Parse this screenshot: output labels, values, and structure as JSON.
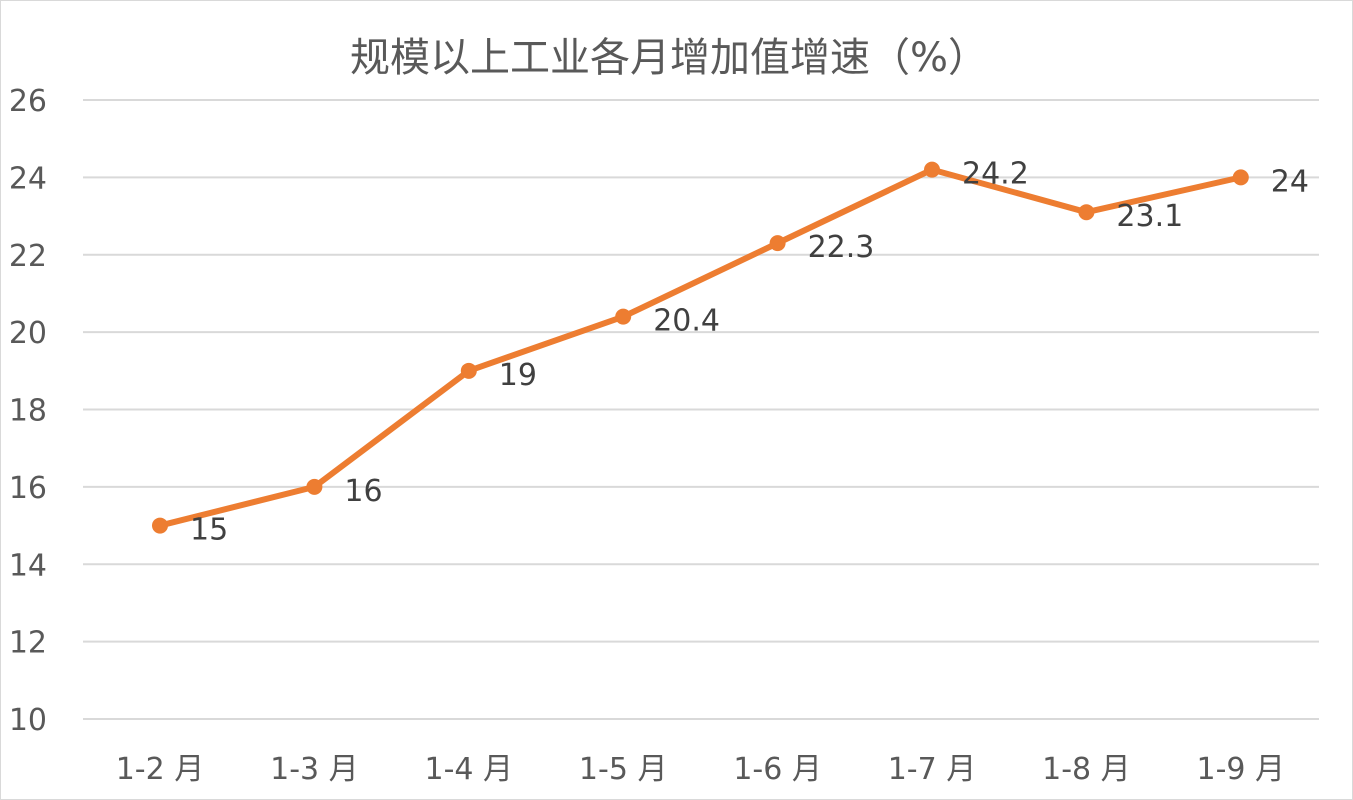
{
  "chart_data": {
    "type": "line",
    "title": "规模以上工业各月增加值增速（%）",
    "xlabel": "",
    "ylabel": "",
    "categories": [
      "1-2 月",
      "1-3 月",
      "1-4 月",
      "1-5 月",
      "1-6 月",
      "1-7 月",
      "1-8 月",
      "1-9 月"
    ],
    "series": [
      {
        "values": [
          15,
          16,
          19,
          20.4,
          22.3,
          24.2,
          23.1,
          24
        ],
        "labels": [
          "15",
          "16",
          "19",
          "20.4",
          "22.3",
          "24.2",
          "23.1",
          "24"
        ],
        "color": "#ed7d31"
      }
    ],
    "ylim": [
      10,
      26
    ],
    "yticks": [
      "10",
      "12",
      "14",
      "16",
      "18",
      "20",
      "22",
      "24",
      "26"
    ],
    "grid": true,
    "legend": "none",
    "colors": {
      "gridline": "#d9d9d9",
      "text": "#595959",
      "data_label": "#404040"
    }
  }
}
